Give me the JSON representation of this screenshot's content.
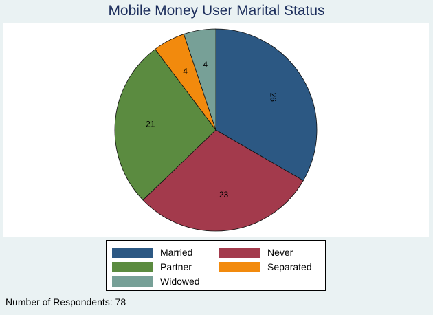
{
  "chart_data": {
    "type": "pie",
    "title": "Mobile Money User Marital Status",
    "categories": [
      "Married",
      "Never",
      "Partner",
      "Separated",
      "Widowed"
    ],
    "values": [
      26,
      23,
      21,
      4,
      4
    ],
    "colors": [
      "#2c5883",
      "#a33a4c",
      "#5b8b40",
      "#f28a0d",
      "#77a097"
    ],
    "label_rotation_deg": [
      90,
      0,
      0,
      0,
      0
    ],
    "legend_position": "bottom",
    "start_angle_deg": 90,
    "direction": "clockwise"
  },
  "footer": {
    "note": "Number of Respondents: 78"
  }
}
